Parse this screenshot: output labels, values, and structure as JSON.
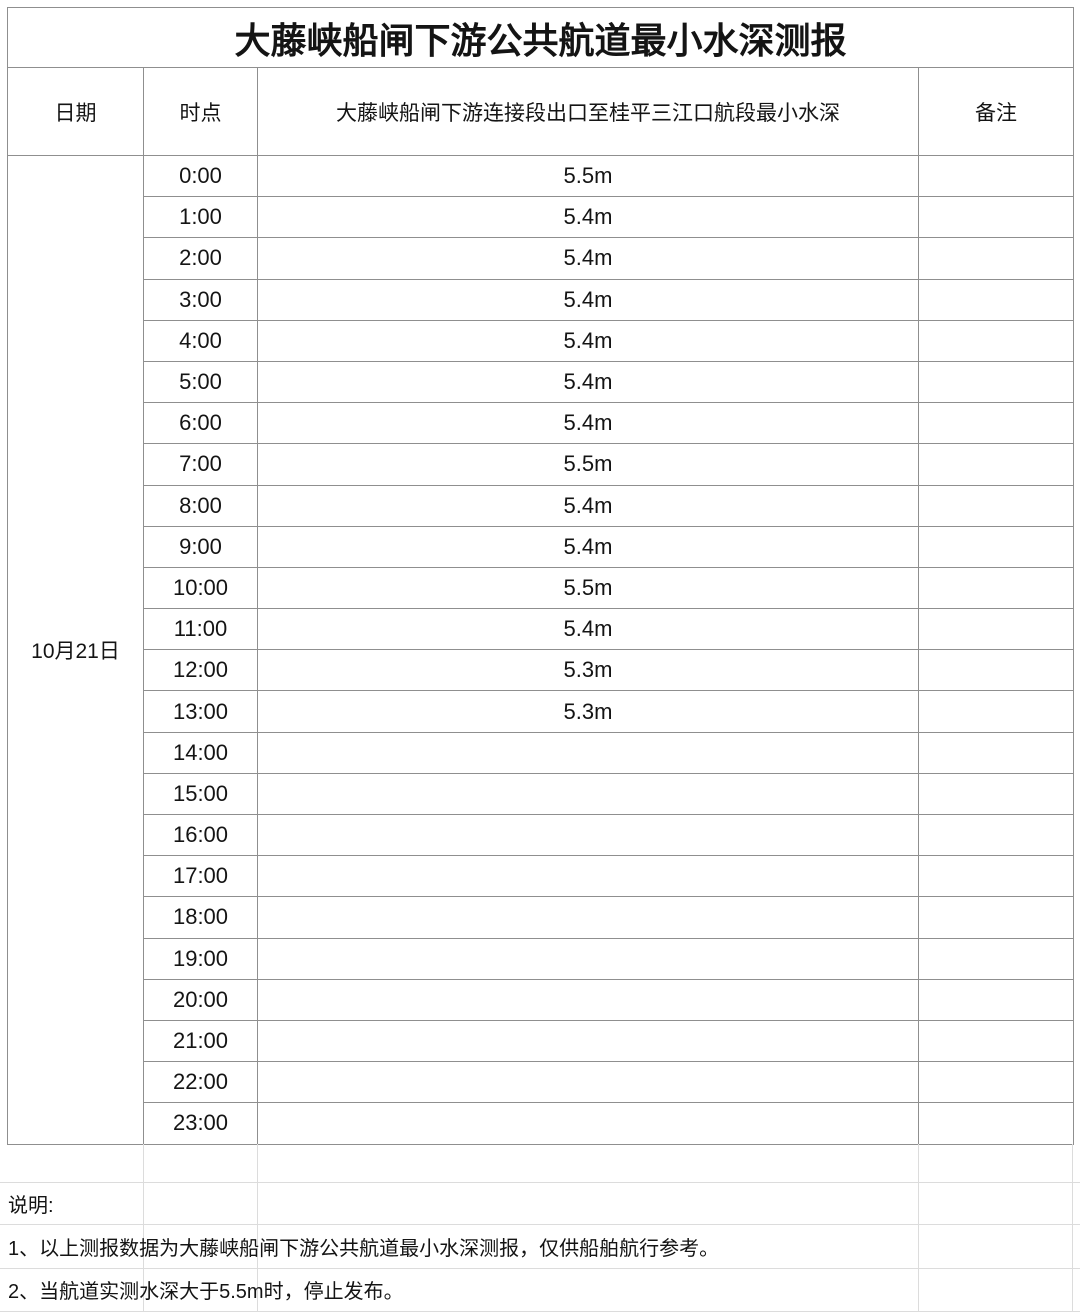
{
  "title": "大藤峡船闸下游公共航道最小水深测报",
  "table": {
    "headers": {
      "date": "日期",
      "time": "时点",
      "depth": "大藤峡船闸下游连接段出口至桂平三江口航段最小水深",
      "remark": "备注"
    },
    "date": "10月21日",
    "rows": [
      {
        "time": "0:00",
        "depth": "5.5m",
        "remark": ""
      },
      {
        "time": "1:00",
        "depth": "5.4m",
        "remark": ""
      },
      {
        "time": "2:00",
        "depth": "5.4m",
        "remark": ""
      },
      {
        "time": "3:00",
        "depth": "5.4m",
        "remark": ""
      },
      {
        "time": "4:00",
        "depth": "5.4m",
        "remark": ""
      },
      {
        "time": "5:00",
        "depth": "5.4m",
        "remark": ""
      },
      {
        "time": "6:00",
        "depth": "5.4m",
        "remark": ""
      },
      {
        "time": "7:00",
        "depth": "5.5m",
        "remark": ""
      },
      {
        "time": "8:00",
        "depth": "5.4m",
        "remark": ""
      },
      {
        "time": "9:00",
        "depth": "5.4m",
        "remark": ""
      },
      {
        "time": "10:00",
        "depth": "5.5m",
        "remark": ""
      },
      {
        "time": "11:00",
        "depth": "5.4m",
        "remark": ""
      },
      {
        "time": "12:00",
        "depth": "5.3m",
        "remark": ""
      },
      {
        "time": "13:00",
        "depth": "5.3m",
        "remark": ""
      },
      {
        "time": "14:00",
        "depth": "",
        "remark": ""
      },
      {
        "time": "15:00",
        "depth": "",
        "remark": ""
      },
      {
        "time": "16:00",
        "depth": "",
        "remark": ""
      },
      {
        "time": "17:00",
        "depth": "",
        "remark": ""
      },
      {
        "time": "18:00",
        "depth": "",
        "remark": ""
      },
      {
        "time": "19:00",
        "depth": "",
        "remark": ""
      },
      {
        "time": "20:00",
        "depth": "",
        "remark": ""
      },
      {
        "time": "21:00",
        "depth": "",
        "remark": ""
      },
      {
        "time": "22:00",
        "depth": "",
        "remark": ""
      },
      {
        "time": "23:00",
        "depth": "",
        "remark": ""
      }
    ]
  },
  "notes": {
    "label": "说明:",
    "items": [
      "1、以上测报数据为大藤峡船闸下游公共航道最小水深测报，仅供船舶航行参考。",
      "2、当航道实测水深大于5.5m时，停止发布。"
    ]
  },
  "colors": {
    "table_border": "#8f8f8f",
    "faint_grid": "#dcdcdc",
    "text": "#141414",
    "background": "#ffffff"
  }
}
